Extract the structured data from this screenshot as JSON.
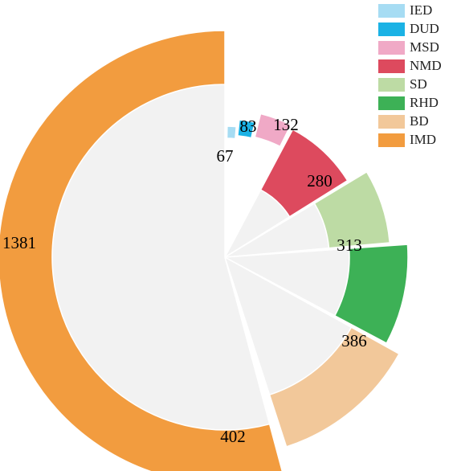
{
  "chart_data": {
    "type": "pie",
    "subtype": "nightingale-rose",
    "title": "",
    "legend": {
      "position": "top-right"
    },
    "categories": [
      "IED",
      "DUD",
      "MSD",
      "NMD",
      "SD",
      "RHD",
      "BD",
      "IMD"
    ],
    "values": [
      67,
      83,
      132,
      280,
      313,
      386,
      402,
      1381
    ],
    "colors": [
      "#a6dcf3",
      "#1bb2e5",
      "#f0a9c6",
      "#dd4a5e",
      "#bddba4",
      "#3db156",
      "#f2c89a",
      "#f29c3f"
    ],
    "background_color": "#f2f2f2"
  }
}
